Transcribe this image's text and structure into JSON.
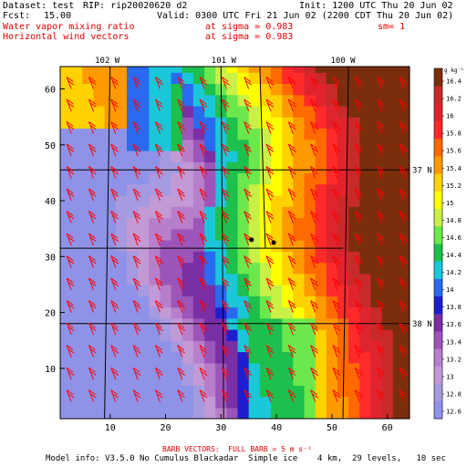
{
  "header": {
    "dataset_label": "Dataset: test",
    "rip_label": "RIP: rip20020620 d2",
    "init_label": "Init: 1200 UTC Thu 20 Jun 02",
    "fcst_label": "Fcst:",
    "fcst_value": "15.00",
    "valid_label": "Valid: 0300 UTC Fri 21 Jun 02 (2200 CDT Thu 20 Jun 02)",
    "field1_name": "Water vapor mixing ratio",
    "field1_level": "at sigma = 0.983",
    "field1_sm": "sm= 1",
    "field2_name": "Horizontal wind vectors",
    "field2_level": "at sigma = 0.983"
  },
  "footer": {
    "barb_note": "BARB VECTORS:  FULL BARB = 5 m s⁻¹",
    "model_info": "Model info: V3.5.0 No Cumulus Blackadar  Simple ice    4 km,  29 levels,   10 sec"
  },
  "colors": {
    "barb": "#ff0000",
    "title_red": "#e00000",
    "scale": [
      "#8f93e8",
      "#a69ae0",
      "#c29ad6",
      "#b77fcb",
      "#9c55b8",
      "#7a2fa5",
      "#1e1ecf",
      "#2a6af0",
      "#19c7d9",
      "#1dbf4d",
      "#6be84b",
      "#c9f047",
      "#ffff00",
      "#ffd200",
      "#ff9a00",
      "#ff6a00",
      "#ff2a2a",
      "#e0242e",
      "#c82a2a",
      "#7a2e0c"
    ]
  },
  "chart_data": {
    "type": "heatmap",
    "title": "Water vapor mixing ratio",
    "x_ticks": [
      "10",
      "20",
      "30",
      "40",
      "50",
      "60"
    ],
    "y_ticks": [
      "10",
      "20",
      "30",
      "40",
      "50",
      "60"
    ],
    "xlim": [
      1,
      64
    ],
    "ylim": [
      1,
      64
    ],
    "top_labels": [
      "102 W",
      "101 W",
      "100 W"
    ],
    "right_labels": [
      "37 N",
      "38 N"
    ],
    "colorbar": {
      "unit": "g kg⁻¹",
      "tick_labels": [
        "16.4",
        "16.2",
        "16",
        "15.8",
        "15.6",
        "15.4",
        "15.2",
        "15",
        "14.8",
        "14.6",
        "14.4",
        "14.2",
        "14",
        "13.8",
        "13.6",
        "13.4",
        "13.2",
        "13",
        "12.8",
        "12.6"
      ],
      "grid": [
        "13.6",
        "13.4",
        "13.2"
      ]
    },
    "stations": [
      {
        "x": 35.5,
        "y": 33
      },
      {
        "x": 39.5,
        "y": 32.5
      }
    ]
  }
}
